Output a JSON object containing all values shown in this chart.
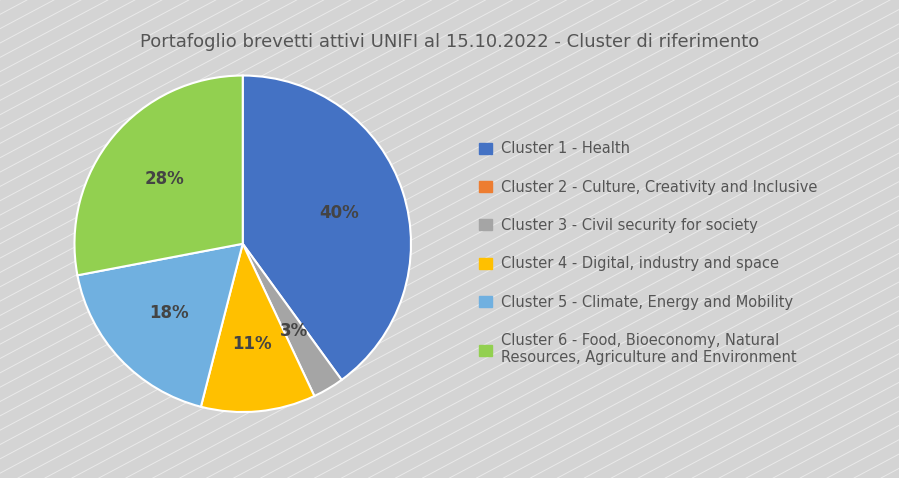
{
  "title": "Portafoglio brevetti attivi UNIFI al 15.10.2022 - Cluster di riferimento",
  "slices": [
    40,
    0,
    3,
    11,
    18,
    28
  ],
  "labels": [
    "Cluster 1 - Health",
    "Cluster 2 - Culture, Creativity and Inclusive",
    "Cluster 3 - Civil security for society",
    "Cluster 4 - Digital, industry and space",
    "Cluster 5 - Climate, Energy and Mobility",
    "Cluster 6 - Food, Bioeconomy, Natural\nResources, Agriculture and Environment"
  ],
  "colors": [
    "#4472C4",
    "#ED7D31",
    "#A5A5A5",
    "#FFC000",
    "#70B0E0",
    "#92D050"
  ],
  "pct_labels": [
    "40%",
    "",
    "3%",
    "11%",
    "18%",
    "28%"
  ],
  "background_color": "#D4D4D4",
  "title_fontsize": 13,
  "legend_fontsize": 10.5,
  "pct_fontsize": 12,
  "startangle": 90
}
